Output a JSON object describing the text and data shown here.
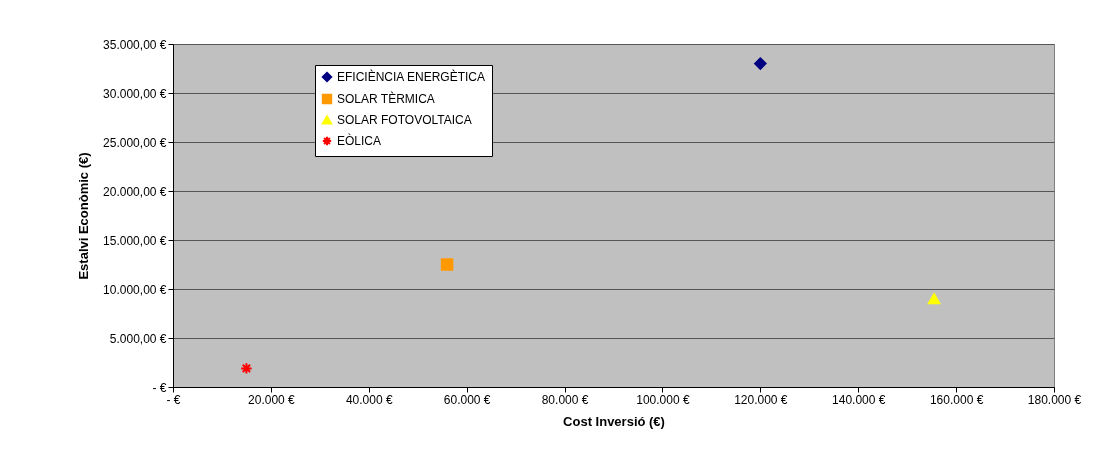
{
  "chart_data": {
    "type": "scatter",
    "xlabel": "Cost Inversió (€)",
    "ylabel": "Estalvi Econòmic (€)",
    "series": [
      {
        "name": "EFICIÈNCIA ENERGÈTICA",
        "color": "#000080",
        "marker": "diamond",
        "x": [
          120000
        ],
        "values": [
          33000
        ]
      },
      {
        "name": "SOLAR TÈRMICA",
        "color": "#ff9900",
        "marker": "square",
        "x": [
          56000
        ],
        "values": [
          12500
        ]
      },
      {
        "name": "SOLAR FOTOVOLTAICA",
        "color": "#ffff00",
        "marker": "triangle",
        "x": [
          155500
        ],
        "values": [
          9000
        ]
      },
      {
        "name": "EÒLICA",
        "color": "#ff0000",
        "marker": "cross",
        "x": [
          15000
        ],
        "values": [
          1900
        ]
      }
    ],
    "xlim": [
      0,
      180000
    ],
    "xticks": [
      {
        "value": 0,
        "label": "- €"
      },
      {
        "value": 20000,
        "label": "20.000 €"
      },
      {
        "value": 40000,
        "label": "40.000 €"
      },
      {
        "value": 60000,
        "label": "60.000 €"
      },
      {
        "value": 80000,
        "label": "80.000 €"
      },
      {
        "value": 100000,
        "label": "100.000 €"
      },
      {
        "value": 120000,
        "label": "120.000 €"
      },
      {
        "value": 140000,
        "label": "140.000 €"
      },
      {
        "value": 160000,
        "label": "160.000 €"
      },
      {
        "value": 180000,
        "label": "180.000 €"
      }
    ],
    "ylim": [
      0,
      35000
    ],
    "yticks": [
      {
        "value": 0,
        "label": "-   €"
      },
      {
        "value": 5000,
        "label": "5.000,00 €"
      },
      {
        "value": 10000,
        "label": "10.000,00 €"
      },
      {
        "value": 15000,
        "label": "15.000,00 €"
      },
      {
        "value": 20000,
        "label": "20.000,00 €"
      },
      {
        "value": 25000,
        "label": "25.000,00 €"
      },
      {
        "value": 30000,
        "label": "30.000,00 €"
      },
      {
        "value": 35000,
        "label": "35.000,00 €"
      }
    ],
    "grid": "y",
    "legend": "top left"
  }
}
